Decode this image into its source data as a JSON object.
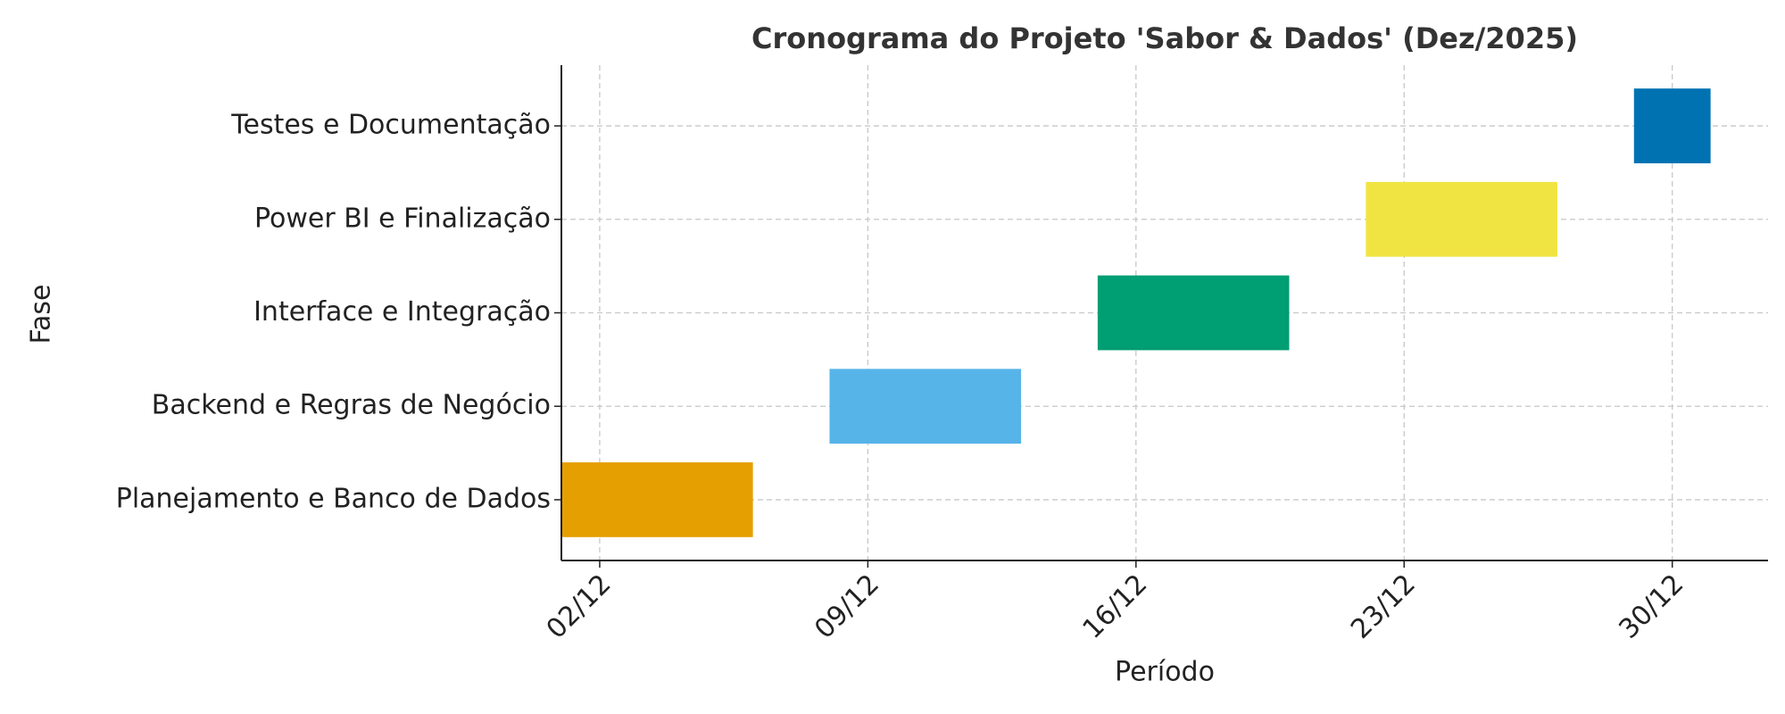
{
  "chart_data": {
    "type": "gantt",
    "title": "Cronograma do Projeto 'Sabor & Dados' (Dez/2025)",
    "x_label": "Período",
    "y_label": "Fase",
    "categories": [
      "Planejamento e Banco de Dados",
      "Backend e Regras de Negócio",
      "Interface e Integração",
      "Power BI e Finalização",
      "Testes e Documentação"
    ],
    "start": [
      1,
      8,
      15,
      22,
      29
    ],
    "end": [
      6,
      13,
      20,
      27,
      31
    ],
    "colors": [
      "#E69F00",
      "#56B4E9",
      "#009E73",
      "#F0E442",
      "#0072B2"
    ],
    "xlim": [
      1,
      32.5
    ],
    "xticks": [
      {
        "value": 2,
        "label": "02/12"
      },
      {
        "value": 9,
        "label": "09/12"
      },
      {
        "value": 16,
        "label": "16/12"
      },
      {
        "value": 23,
        "label": "23/12"
      },
      {
        "value": 30,
        "label": "30/12"
      }
    ],
    "grid": true
  }
}
